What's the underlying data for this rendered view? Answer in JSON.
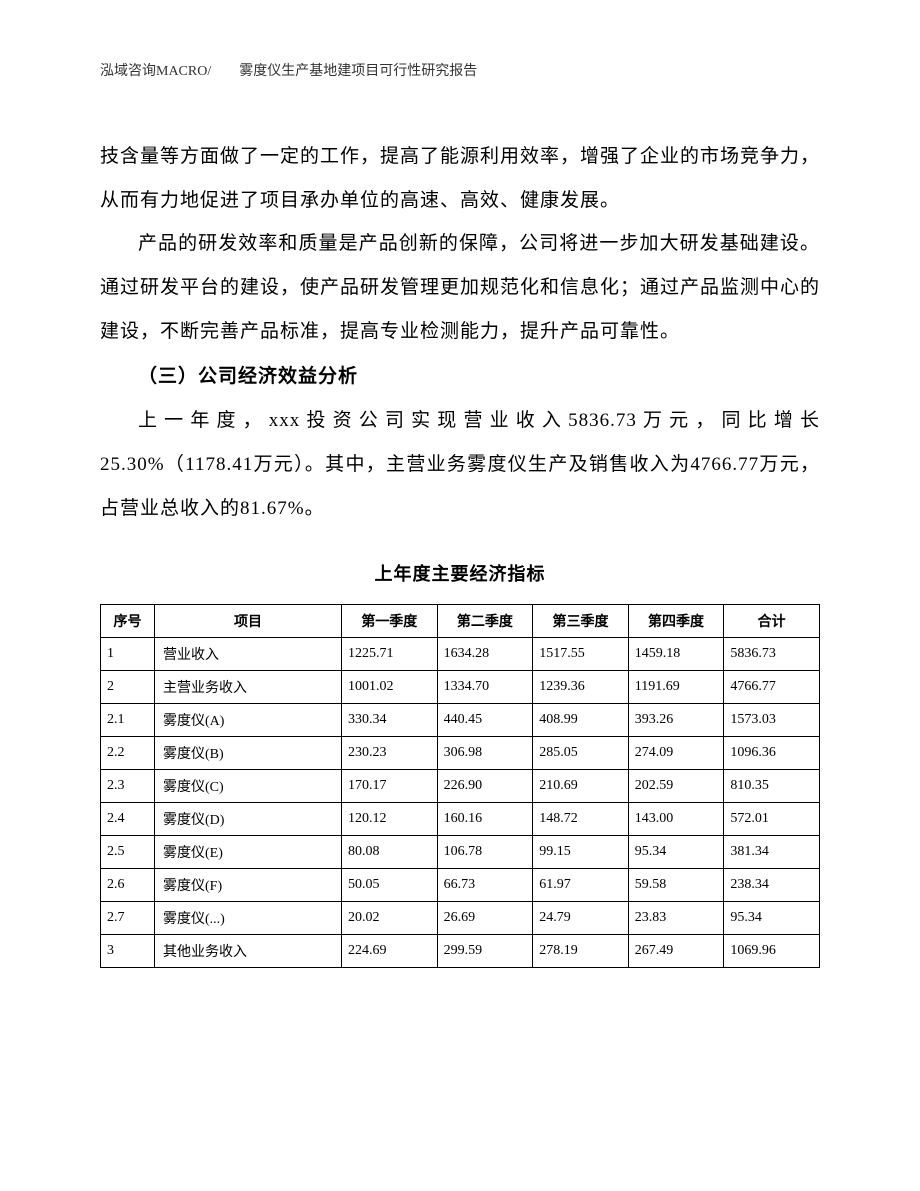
{
  "header": {
    "text": "泓域咨询MACRO/　　雾度仪生产基地建项目可行性研究报告"
  },
  "paragraphs": {
    "p1": "技含量等方面做了一定的工作，提高了能源利用效率，增强了企业的市场竞争力，从而有力地促进了项目承办单位的高速、高效、健康发展。",
    "p2": "产品的研发效率和质量是产品创新的保障，公司将进一步加大研发基础建设。通过研发平台的建设，使产品研发管理更加规范化和信息化；通过产品监测中心的建设，不断完善产品标准，提高专业检测能力，提升产品可靠性。",
    "heading": "（三）公司经济效益分析",
    "p3": "上一年度，xxx投资公司实现营业收入5836.73万元，同比增长25.30%（1178.41万元）。其中，主营业务雾度仪生产及销售收入为4766.77万元，占营业总收入的81.67%。"
  },
  "table": {
    "title": "上年度主要经济指标",
    "columns": {
      "seq": "序号",
      "item": "项目",
      "q1": "第一季度",
      "q2": "第二季度",
      "q3": "第三季度",
      "q4": "第四季度",
      "total": "合计"
    },
    "rows": [
      {
        "seq": "1",
        "item": "营业收入",
        "q1": "1225.71",
        "q2": "1634.28",
        "q3": "1517.55",
        "q4": "1459.18",
        "total": "5836.73"
      },
      {
        "seq": "2",
        "item": "主营业务收入",
        "q1": "1001.02",
        "q2": "1334.70",
        "q3": "1239.36",
        "q4": "1191.69",
        "total": "4766.77"
      },
      {
        "seq": "2.1",
        "item": "雾度仪(A)",
        "q1": "330.34",
        "q2": "440.45",
        "q3": "408.99",
        "q4": "393.26",
        "total": "1573.03"
      },
      {
        "seq": "2.2",
        "item": "雾度仪(B)",
        "q1": "230.23",
        "q2": "306.98",
        "q3": "285.05",
        "q4": "274.09",
        "total": "1096.36"
      },
      {
        "seq": "2.3",
        "item": "雾度仪(C)",
        "q1": "170.17",
        "q2": "226.90",
        "q3": "210.69",
        "q4": "202.59",
        "total": "810.35"
      },
      {
        "seq": "2.4",
        "item": "雾度仪(D)",
        "q1": "120.12",
        "q2": "160.16",
        "q3": "148.72",
        "q4": "143.00",
        "total": "572.01"
      },
      {
        "seq": "2.5",
        "item": "雾度仪(E)",
        "q1": "80.08",
        "q2": "106.78",
        "q3": "99.15",
        "q4": "95.34",
        "total": "381.34"
      },
      {
        "seq": "2.6",
        "item": "雾度仪(F)",
        "q1": "50.05",
        "q2": "66.73",
        "q3": "61.97",
        "q4": "59.58",
        "total": "238.34"
      },
      {
        "seq": "2.7",
        "item": "雾度仪(...)",
        "q1": "20.02",
        "q2": "26.69",
        "q3": "24.79",
        "q4": "23.83",
        "total": "95.34"
      },
      {
        "seq": "3",
        "item": "其他业务收入",
        "q1": "224.69",
        "q2": "299.59",
        "q3": "278.19",
        "q4": "267.49",
        "total": "1069.96"
      }
    ]
  }
}
